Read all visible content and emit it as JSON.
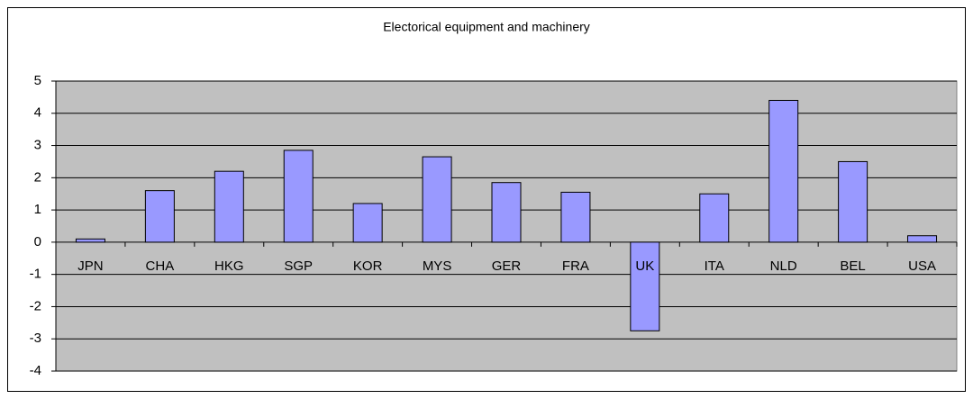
{
  "chart_data": {
    "type": "bar",
    "title": "Electorical equipment and machinery",
    "categories": [
      "JPN",
      "CHA",
      "HKG",
      "SGP",
      "KOR",
      "MYS",
      "GER",
      "FRA",
      "UK",
      "ITA",
      "NLD",
      "BEL",
      "USA"
    ],
    "values": [
      0.1,
      1.6,
      2.2,
      2.85,
      1.2,
      2.65,
      1.85,
      1.55,
      -2.75,
      1.5,
      4.4,
      2.5,
      0.2
    ],
    "color": "#9999ff",
    "ylim": [
      -4,
      5
    ],
    "yticks": [
      -4,
      -3,
      -2,
      -1,
      0,
      1,
      2,
      3,
      4,
      5
    ],
    "grid": true
  }
}
